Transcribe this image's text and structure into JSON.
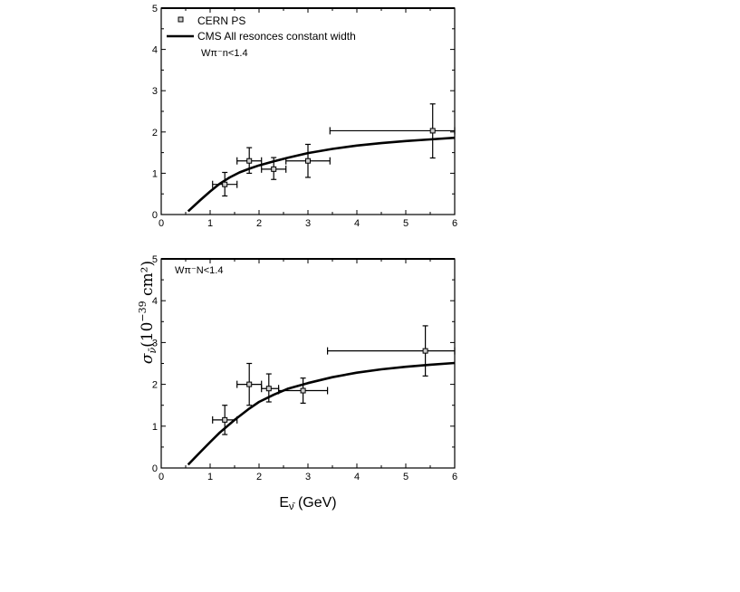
{
  "chart_data": [
    {
      "type": "scatter",
      "panel": "top",
      "xlim": [
        0,
        6
      ],
      "ylim": [
        0,
        5
      ],
      "x_ticks": [
        "0",
        "1",
        "2",
        "3",
        "4",
        "5",
        "6"
      ],
      "y_ticks": [
        "0",
        "1",
        "2",
        "3",
        "4",
        "5"
      ],
      "annotation": "Wπ⁻n<1.4",
      "legend": {
        "placement": "top-left",
        "entries": [
          "CERN PS",
          "CMS All resonces constant width"
        ]
      },
      "series": [
        {
          "name": "CERN PS",
          "kind": "points",
          "points": [
            {
              "x": 1.3,
              "y": 0.73,
              "xerr": [
                1.05,
                1.55
              ],
              "yerr": [
                0.45,
                1.02
              ]
            },
            {
              "x": 1.8,
              "y": 1.3,
              "xerr": [
                1.55,
                2.05
              ],
              "yerr": [
                1.0,
                1.62
              ]
            },
            {
              "x": 2.3,
              "y": 1.1,
              "xerr": [
                2.05,
                2.55
              ],
              "yerr": [
                0.85,
                1.38
              ]
            },
            {
              "x": 3.0,
              "y": 1.3,
              "xerr": [
                2.55,
                3.45
              ],
              "yerr": [
                0.9,
                1.7
              ]
            },
            {
              "x": 5.55,
              "y": 2.03,
              "xerr": [
                3.45,
                6.0
              ],
              "yerr": [
                1.37,
                2.68
              ]
            }
          ]
        },
        {
          "name": "CMS All resonces constant width",
          "kind": "line",
          "x": [
            0.55,
            0.8,
            1.0,
            1.2,
            1.4,
            1.6,
            1.8,
            2.0,
            2.3,
            2.6,
            3.0,
            3.5,
            4.0,
            4.5,
            5.0,
            5.5,
            6.0
          ],
          "y": [
            0.08,
            0.35,
            0.56,
            0.75,
            0.9,
            1.02,
            1.11,
            1.19,
            1.29,
            1.38,
            1.49,
            1.59,
            1.67,
            1.73,
            1.78,
            1.82,
            1.86
          ]
        }
      ]
    },
    {
      "type": "scatter",
      "panel": "bottom",
      "xlim": [
        0,
        6
      ],
      "ylim": [
        0,
        5
      ],
      "x_ticks": [
        "0",
        "1",
        "2",
        "3",
        "4",
        "5",
        "6"
      ],
      "y_ticks": [
        "0",
        "1",
        "2",
        "3",
        "4",
        "5"
      ],
      "annotation": "Wπ⁻N<1.4",
      "xlabel": "E",
      "xlabel_sub": "ν̄",
      "xlabel_unit": " (GeV)",
      "series": [
        {
          "name": "CERN PS",
          "kind": "points",
          "points": [
            {
              "x": 1.3,
              "y": 1.15,
              "xerr": [
                1.05,
                1.55
              ],
              "yerr": [
                0.8,
                1.5
              ]
            },
            {
              "x": 1.8,
              "y": 2.0,
              "xerr": [
                1.55,
                2.05
              ],
              "yerr": [
                1.5,
                2.5
              ]
            },
            {
              "x": 2.2,
              "y": 1.9,
              "xerr": [
                2.05,
                2.4
              ],
              "yerr": [
                1.58,
                2.25
              ]
            },
            {
              "x": 2.9,
              "y": 1.85,
              "xerr": [
                2.4,
                3.4
              ],
              "yerr": [
                1.55,
                2.15
              ]
            },
            {
              "x": 5.4,
              "y": 2.8,
              "xerr": [
                3.4,
                6.0
              ],
              "yerr": [
                2.2,
                3.4
              ]
            }
          ]
        },
        {
          "name": "CMS All resonces constant width",
          "kind": "line",
          "x": [
            0.55,
            0.8,
            1.0,
            1.2,
            1.5,
            1.8,
            2.0,
            2.3,
            2.6,
            3.0,
            3.5,
            4.0,
            4.5,
            5.0,
            5.5,
            6.0
          ],
          "y": [
            0.08,
            0.38,
            0.62,
            0.85,
            1.15,
            1.42,
            1.58,
            1.75,
            1.9,
            2.03,
            2.17,
            2.28,
            2.36,
            2.42,
            2.47,
            2.51
          ]
        }
      ]
    }
  ],
  "ylabel": {
    "sigma": "σ",
    "sub": "ν̄",
    "text": "(10",
    "exp": "−39",
    "unit": " cm²)"
  }
}
